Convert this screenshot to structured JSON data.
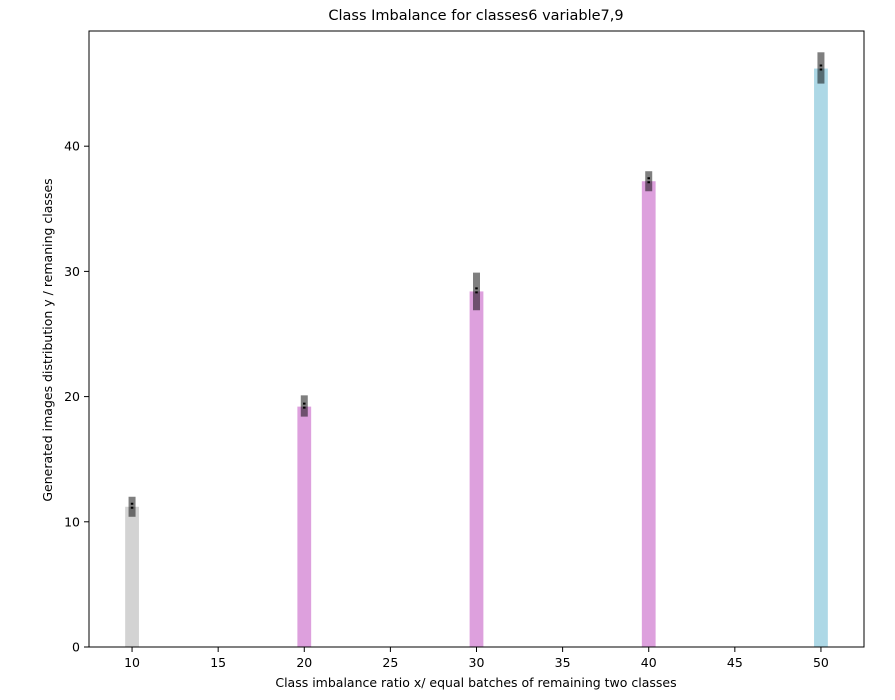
{
  "chart_data": {
    "type": "bar",
    "title": "Class Imbalance for classes6 variable7,9",
    "xlabel": "Class imbalance ratio x/ equal batches of remaining two classes",
    "ylabel": "Generated images distribution y / remaning classes",
    "xlim": [
      7.5,
      52.5
    ],
    "ylim": [
      0,
      49.2
    ],
    "xticks": [
      10,
      15,
      20,
      25,
      30,
      35,
      40,
      45,
      50
    ],
    "yticks": [
      0,
      10,
      20,
      30,
      40
    ],
    "bar_width": 0.8,
    "grid": false,
    "legend": "none",
    "bars": [
      {
        "x": 10,
        "value": 11.2,
        "color": "#d3d3d3",
        "err_low": 10.4,
        "err_high": 12.0
      },
      {
        "x": 20,
        "value": 19.2,
        "color": "#dda0dd",
        "err_low": 18.4,
        "err_high": 20.1
      },
      {
        "x": 30,
        "value": 28.4,
        "color": "#dda0dd",
        "err_low": 26.9,
        "err_high": 29.9
      },
      {
        "x": 40,
        "value": 37.2,
        "color": "#dda0dd",
        "err_low": 36.4,
        "err_high": 38.0
      },
      {
        "x": 50,
        "value": 46.2,
        "color": "#add8e6",
        "err_low": 45.0,
        "err_high": 47.5
      }
    ],
    "errorbar_color": "#000000"
  }
}
